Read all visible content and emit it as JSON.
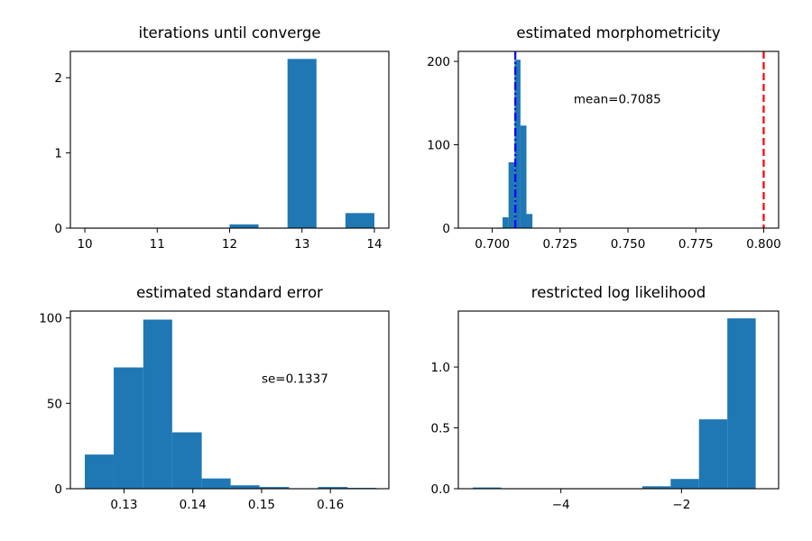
{
  "chart_data": [
    {
      "type": "bar",
      "title": "iterations until converge",
      "xlabel": "",
      "ylabel": "",
      "xlim": [
        9.8,
        14.2
      ],
      "ylim": [
        0,
        2.35
      ],
      "xticks": [
        10,
        11,
        12,
        13,
        14
      ],
      "xtick_labels": [
        "10",
        "11",
        "12",
        "13",
        "14"
      ],
      "yticks": [
        0,
        1,
        2
      ],
      "ytick_labels": [
        "0",
        "1",
        "2"
      ],
      "bins": [
        {
          "x0": 10.0,
          "x1": 10.4,
          "value": 0
        },
        {
          "x0": 10.4,
          "x1": 10.8,
          "value": 0
        },
        {
          "x0": 10.8,
          "x1": 11.2,
          "value": 0
        },
        {
          "x0": 11.2,
          "x1": 11.6,
          "value": 0
        },
        {
          "x0": 11.6,
          "x1": 12.0,
          "value": 0
        },
        {
          "x0": 12.0,
          "x1": 12.4,
          "value": 0.05
        },
        {
          "x0": 12.4,
          "x1": 12.8,
          "value": 0
        },
        {
          "x0": 12.8,
          "x1": 13.2,
          "value": 2.25
        },
        {
          "x0": 13.2,
          "x1": 13.6,
          "value": 0
        },
        {
          "x0": 13.6,
          "x1": 14.0,
          "value": 0.2
        }
      ],
      "color": "#1f77b4"
    },
    {
      "type": "bar",
      "title": "estimated morphometricity",
      "xlabel": "",
      "ylabel": "",
      "xlim": [
        0.6875,
        0.8055
      ],
      "ylim": [
        0,
        212
      ],
      "xticks": [
        0.7,
        0.725,
        0.75,
        0.775,
        0.8
      ],
      "xtick_labels": [
        "0.700",
        "0.725",
        "0.750",
        "0.775",
        "0.800"
      ],
      "yticks": [
        0,
        100,
        200
      ],
      "ytick_labels": [
        "0",
        "100",
        "200"
      ],
      "bins": [
        {
          "x0": 0.7016,
          "x1": 0.7038,
          "value": 0
        },
        {
          "x0": 0.7038,
          "x1": 0.706,
          "value": 13
        },
        {
          "x0": 0.706,
          "x1": 0.7082,
          "value": 79
        },
        {
          "x0": 0.7082,
          "x1": 0.7104,
          "value": 202
        },
        {
          "x0": 0.7104,
          "x1": 0.7126,
          "value": 123
        },
        {
          "x0": 0.7126,
          "x1": 0.7148,
          "value": 17
        }
      ],
      "vlines": [
        {
          "x": 0.7085,
          "color": "#0000ff",
          "style": "dashdot"
        },
        {
          "x": 0.8,
          "color": "#ff0000",
          "style": "dashed"
        }
      ],
      "annotation": {
        "text": "mean=0.7085",
        "x": 0.73,
        "y": 150
      },
      "color": "#1f77b4"
    },
    {
      "type": "bar",
      "title": "estimated standard error",
      "xlabel": "",
      "ylabel": "",
      "xlim": [
        0.1222,
        0.1685
      ],
      "ylim": [
        0,
        104
      ],
      "xticks": [
        0.13,
        0.14,
        0.15,
        0.16
      ],
      "xtick_labels": [
        "0.13",
        "0.14",
        "0.15",
        "0.16"
      ],
      "yticks": [
        0,
        50,
        100
      ],
      "ytick_labels": [
        "0",
        "50",
        "100"
      ],
      "bins": [
        {
          "x0": 0.1243,
          "x1": 0.1285,
          "value": 20
        },
        {
          "x0": 0.1285,
          "x1": 0.1328,
          "value": 71
        },
        {
          "x0": 0.1328,
          "x1": 0.137,
          "value": 99
        },
        {
          "x0": 0.137,
          "x1": 0.1413,
          "value": 33
        },
        {
          "x0": 0.1413,
          "x1": 0.1455,
          "value": 6
        },
        {
          "x0": 0.1455,
          "x1": 0.1497,
          "value": 2
        },
        {
          "x0": 0.1497,
          "x1": 0.154,
          "value": 1
        },
        {
          "x0": 0.154,
          "x1": 0.1582,
          "value": 0
        },
        {
          "x0": 0.1582,
          "x1": 0.1625,
          "value": 1
        },
        {
          "x0": 0.1625,
          "x1": 0.1667,
          "value": 0.5
        }
      ],
      "annotation": {
        "text": "se=0.1337",
        "x": 0.15,
        "y": 62
      },
      "color": "#1f77b4"
    },
    {
      "type": "bar",
      "title": "restricted log likelihood",
      "xlabel": "",
      "ylabel": "",
      "xlim": [
        -5.7,
        -0.39
      ],
      "ylim": [
        0,
        1.46
      ],
      "xticks": [
        -4,
        -2
      ],
      "xtick_labels": [
        "−4",
        "−2"
      ],
      "yticks": [
        0,
        0.5,
        1.0
      ],
      "ytick_labels": [
        "0.0",
        "0.5",
        "1.0"
      ],
      "bins": [
        {
          "x0": -5.46,
          "x1": -4.99,
          "value": 0.01
        },
        {
          "x0": -4.99,
          "x1": -4.52,
          "value": 0
        },
        {
          "x0": -4.52,
          "x1": -4.06,
          "value": 0
        },
        {
          "x0": -4.06,
          "x1": -3.59,
          "value": 0
        },
        {
          "x0": -3.59,
          "x1": -3.12,
          "value": 0
        },
        {
          "x0": -3.12,
          "x1": -2.65,
          "value": 0
        },
        {
          "x0": -2.65,
          "x1": -2.18,
          "value": 0.02
        },
        {
          "x0": -2.18,
          "x1": -1.71,
          "value": 0.08
        },
        {
          "x0": -1.71,
          "x1": -1.24,
          "value": 0.57
        },
        {
          "x0": -1.24,
          "x1": -0.77,
          "value": 1.4
        }
      ],
      "color": "#1f77b4"
    }
  ]
}
